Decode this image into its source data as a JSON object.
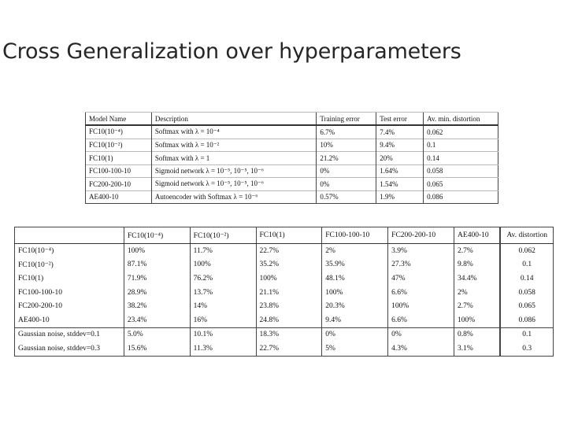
{
  "title": "Cross Generalization over hyperparameters",
  "table1": {
    "headers": [
      "Model Name",
      "Description",
      "Training error",
      "Test error",
      "Av. min. distortion"
    ],
    "rows": [
      [
        "FC10(10⁻⁴)",
        "Softmax with λ = 10⁻⁴",
        "6.7%",
        "7.4%",
        "0.062"
      ],
      [
        "FC10(10⁻²)",
        "Softmax with λ = 10⁻²",
        "10%",
        "9.4%",
        "0.1"
      ],
      [
        "FC10(1)",
        "Softmax with λ = 1",
        "21.2%",
        "20%",
        "0.14"
      ],
      [
        "FC100-100-10",
        "Sigmoid network λ = 10⁻⁵, 10⁻⁵, 10⁻⁶",
        "0%",
        "1.64%",
        "0.058"
      ],
      [
        "FC200-200-10",
        "Sigmoid network λ = 10⁻⁵, 10⁻⁵, 10⁻⁶",
        "0%",
        "1.54%",
        "0.065"
      ],
      [
        "AE400-10",
        "Autoencoder with Softmax λ = 10⁻⁶",
        "0.57%",
        "1.9%",
        "0.086"
      ]
    ]
  },
  "table2": {
    "headers": [
      "",
      "FC10(10⁻⁴)",
      "FC10(10⁻²)",
      "FC10(1)",
      "FC100-100-10",
      "FC200-200-10",
      "AE400-10",
      "Av. distortion"
    ],
    "rows": [
      [
        "FC10(10⁻⁴)",
        "100%",
        "11.7%",
        "22.7%",
        "2%",
        "3.9%",
        "2.7%",
        "0.062"
      ],
      [
        "FC10(10⁻²)",
        "87.1%",
        "100%",
        "35.2%",
        "35.9%",
        "27.3%",
        "9.8%",
        "0.1"
      ],
      [
        "FC10(1)",
        "71.9%",
        "76.2%",
        "100%",
        "48.1%",
        "47%",
        "34.4%",
        "0.14"
      ],
      [
        "FC100-100-10",
        "28.9%",
        "13.7%",
        "21.1%",
        "100%",
        "6.6%",
        "2%",
        "0.058"
      ],
      [
        "FC200-200-10",
        "38.2%",
        "14%",
        "23.8%",
        "20.3%",
        "100%",
        "2.7%",
        "0.065"
      ],
      [
        "AE400-10",
        "23.4%",
        "16%",
        "24.8%",
        "9.4%",
        "6.6%",
        "100%",
        "0.086"
      ],
      [
        "Gaussian noise, stddev=0.1",
        "5.0%",
        "10.1%",
        "18.3%",
        "0%",
        "0%",
        "0.8%",
        "0.1"
      ],
      [
        "Gaussian noise, stddev=0.3",
        "15.6%",
        "11.3%",
        "22.7%",
        "5%",
        "4.3%",
        "3.1%",
        "0.3"
      ]
    ]
  }
}
